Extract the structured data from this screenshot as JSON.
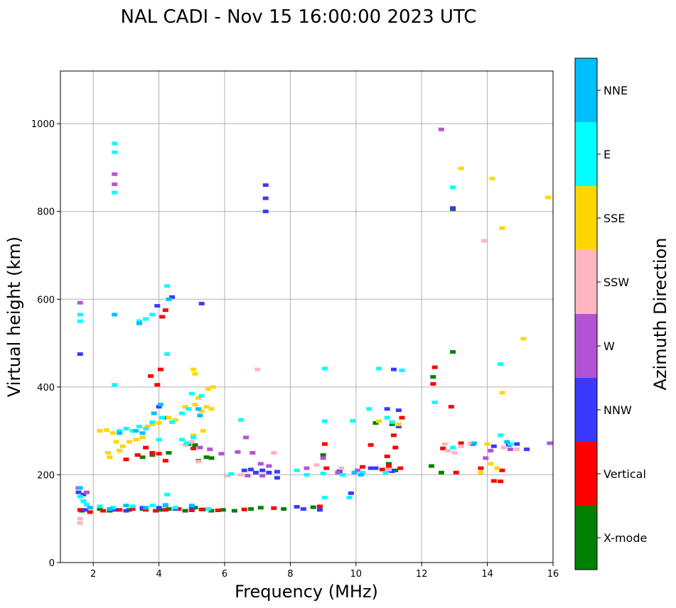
{
  "chart_data": {
    "type": "scatter",
    "title": "NAL CADI - Nov 15 16:00:00 2023 UTC",
    "xlabel": "Frequency (MHz)",
    "ylabel": "Virtual height (km)",
    "xlim": [
      1,
      16
    ],
    "ylim": [
      0,
      1120
    ],
    "xticks": [
      2,
      4,
      6,
      8,
      10,
      12,
      14,
      16
    ],
    "yticks": [
      0,
      200,
      400,
      600,
      800,
      1000
    ],
    "grid": true,
    "colorbar": {
      "label": "Azimuth Direction",
      "categories": [
        "X-mode",
        "Vertical",
        "NNW",
        "W",
        "SSW",
        "SSE",
        "E",
        "NNE"
      ],
      "colors": [
        "#008000",
        "#ff0000",
        "#3a3aff",
        "#b354d6",
        "#ffb6c1",
        "#ffd700",
        "#00ffff",
        "#00bfff"
      ]
    },
    "series": [
      {
        "name": "X-mode",
        "points": [
          [
            1.65,
            118
          ],
          [
            2.2,
            122
          ],
          [
            2.5,
            118
          ],
          [
            3.1,
            120
          ],
          [
            3.5,
            122
          ],
          [
            4.05,
            120
          ],
          [
            4.3,
            122
          ],
          [
            4.8,
            118
          ],
          [
            5.1,
            125
          ],
          [
            5.35,
            121
          ],
          [
            5.6,
            118
          ],
          [
            5.95,
            120
          ],
          [
            6.3,
            118
          ],
          [
            6.8,
            122
          ],
          [
            7.1,
            125
          ],
          [
            7.8,
            122
          ],
          [
            8.7,
            126
          ],
          [
            3.5,
            240
          ],
          [
            3.8,
            245
          ],
          [
            4.3,
            250
          ],
          [
            5.2,
            232
          ],
          [
            5.45,
            240
          ],
          [
            5.6,
            238
          ],
          [
            11.0,
            225
          ],
          [
            11.2,
            210
          ],
          [
            12.3,
            220
          ],
          [
            12.6,
            205
          ],
          [
            12.35,
            423
          ],
          [
            12.95,
            480
          ],
          [
            12.95,
            805
          ],
          [
            4.9,
            270
          ],
          [
            5.1,
            268
          ],
          [
            9.0,
            245
          ],
          [
            10.6,
            318
          ],
          [
            11.1,
            315
          ]
        ]
      },
      {
        "name": "Vertical",
        "points": [
          [
            1.6,
            120
          ],
          [
            1.9,
            115
          ],
          [
            2.3,
            118
          ],
          [
            2.8,
            120
          ],
          [
            3.2,
            122
          ],
          [
            3.6,
            120
          ],
          [
            3.9,
            118
          ],
          [
            4.2,
            120
          ],
          [
            4.6,
            122
          ],
          [
            5.0,
            119
          ],
          [
            5.3,
            121
          ],
          [
            5.8,
            119
          ],
          [
            6.6,
            121
          ],
          [
            7.5,
            124
          ],
          [
            8.9,
            128
          ],
          [
            3.0,
            235
          ],
          [
            3.35,
            245
          ],
          [
            3.6,
            262
          ],
          [
            3.8,
            250
          ],
          [
            4.0,
            248
          ],
          [
            4.2,
            232
          ],
          [
            5.05,
            260
          ],
          [
            3.75,
            425
          ],
          [
            3.95,
            405
          ],
          [
            4.1,
            560
          ],
          [
            4.2,
            575
          ],
          [
            4.05,
            440
          ],
          [
            9.1,
            215
          ],
          [
            9.05,
            270
          ],
          [
            10.2,
            218
          ],
          [
            10.45,
            268
          ],
          [
            10.8,
            212
          ],
          [
            11.0,
            220
          ],
          [
            11.2,
            262
          ],
          [
            11.4,
            330
          ],
          [
            11.15,
            290
          ],
          [
            11.35,
            215
          ],
          [
            12.35,
            407
          ],
          [
            12.4,
            445
          ],
          [
            12.65,
            260
          ],
          [
            12.9,
            355
          ],
          [
            13.05,
            205
          ],
          [
            13.2,
            272
          ],
          [
            14.2,
            186
          ],
          [
            14.4,
            185
          ],
          [
            14.45,
            210
          ],
          [
            13.8,
            215
          ],
          [
            10.95,
            242
          ]
        ]
      },
      {
        "name": "NNW",
        "points": [
          [
            1.55,
            160
          ],
          [
            1.7,
            155
          ],
          [
            1.75,
            120
          ],
          [
            2.65,
            120
          ],
          [
            3.0,
            118
          ],
          [
            3.5,
            125
          ],
          [
            4.0,
            125
          ],
          [
            4.5,
            122
          ],
          [
            5.0,
            125
          ],
          [
            6.6,
            210
          ],
          [
            6.8,
            212
          ],
          [
            6.95,
            205
          ],
          [
            7.15,
            210
          ],
          [
            7.35,
            205
          ],
          [
            7.6,
            193
          ],
          [
            7.6,
            207
          ],
          [
            8.2,
            127
          ],
          [
            8.4,
            122
          ],
          [
            8.9,
            120
          ],
          [
            9.5,
            208
          ],
          [
            9.85,
            158
          ],
          [
            10.45,
            215
          ],
          [
            10.6,
            215
          ],
          [
            11.05,
            210
          ],
          [
            11.3,
            310
          ],
          [
            11.15,
            440
          ],
          [
            10.95,
            350
          ],
          [
            11.3,
            347
          ],
          [
            11.1,
            208
          ],
          [
            13.55,
            270
          ],
          [
            14.2,
            265
          ],
          [
            14.65,
            268
          ],
          [
            14.9,
            270
          ],
          [
            15.2,
            258
          ],
          [
            4.4,
            605
          ],
          [
            4.2,
            330
          ],
          [
            4.0,
            355
          ],
          [
            7.25,
            860
          ],
          [
            7.25,
            830
          ],
          [
            7.25,
            800
          ],
          [
            1.6,
            475
          ],
          [
            5.3,
            590
          ],
          [
            12.95,
            808
          ],
          [
            3.95,
            585
          ]
        ]
      },
      {
        "name": "W",
        "points": [
          [
            5.25,
            262
          ],
          [
            5.55,
            258
          ],
          [
            5.9,
            248
          ],
          [
            6.4,
            252
          ],
          [
            6.65,
            285
          ],
          [
            6.85,
            250
          ],
          [
            7.1,
            225
          ],
          [
            7.35,
            220
          ],
          [
            8.5,
            215
          ],
          [
            9.0,
            238
          ],
          [
            9.45,
            205
          ],
          [
            10.05,
            210
          ],
          [
            12.6,
            987
          ],
          [
            13.95,
            238
          ],
          [
            14.1,
            255
          ],
          [
            14.7,
            258
          ],
          [
            15.9,
            272
          ],
          [
            6.7,
            198
          ],
          [
            7.15,
            198
          ],
          [
            1.6,
            592
          ],
          [
            1.8,
            160
          ],
          [
            1.55,
            170
          ],
          [
            2.65,
            885
          ],
          [
            2.65,
            862
          ]
        ]
      },
      {
        "name": "SSW",
        "points": [
          [
            5.2,
            230
          ],
          [
            6.1,
            198
          ],
          [
            6.5,
            200
          ],
          [
            7.5,
            250
          ],
          [
            7.0,
            440
          ],
          [
            8.8,
            222
          ],
          [
            9.55,
            215
          ],
          [
            11.0,
            212
          ],
          [
            12.7,
            270
          ],
          [
            12.8,
            255
          ],
          [
            13.0,
            250
          ],
          [
            13.2,
            265
          ],
          [
            13.5,
            272
          ],
          [
            13.9,
            733
          ],
          [
            14.5,
            262
          ],
          [
            14.9,
            258
          ],
          [
            1.6,
            100
          ],
          [
            1.6,
            90
          ],
          [
            4.8,
            268
          ],
          [
            5.0,
            275
          ]
        ]
      },
      {
        "name": "SSE",
        "points": [
          [
            2.2,
            300
          ],
          [
            2.4,
            302
          ],
          [
            2.6,
            295
          ],
          [
            2.7,
            275
          ],
          [
            2.9,
            265
          ],
          [
            3.1,
            275
          ],
          [
            3.3,
            280
          ],
          [
            3.5,
            285
          ],
          [
            3.65,
            310
          ],
          [
            3.8,
            315
          ],
          [
            4.0,
            318
          ],
          [
            4.3,
            330
          ],
          [
            4.5,
            325
          ],
          [
            4.8,
            355
          ],
          [
            5.1,
            360
          ],
          [
            5.2,
            375
          ],
          [
            5.3,
            345
          ],
          [
            5.45,
            355
          ],
          [
            5.6,
            350
          ],
          [
            5.1,
            430
          ],
          [
            5.05,
            440
          ],
          [
            5.5,
            395
          ],
          [
            5.65,
            400
          ],
          [
            2.45,
            250
          ],
          [
            2.5,
            240
          ],
          [
            2.8,
            255
          ],
          [
            13.2,
            898
          ],
          [
            14.15,
            875
          ],
          [
            14.45,
            762
          ],
          [
            14.45,
            387
          ],
          [
            15.1,
            510
          ],
          [
            15.85,
            832
          ],
          [
            14.1,
            225
          ],
          [
            14.3,
            215
          ],
          [
            13.8,
            205
          ],
          [
            14.0,
            270
          ],
          [
            11.3,
            315
          ],
          [
            10.7,
            322
          ],
          [
            5.05,
            290
          ],
          [
            5.35,
            300
          ]
        ]
      },
      {
        "name": "E",
        "points": [
          [
            1.6,
            150
          ],
          [
            1.7,
            140
          ],
          [
            1.8,
            132
          ],
          [
            2.2,
            128
          ],
          [
            2.6,
            125
          ],
          [
            3.2,
            128
          ],
          [
            3.8,
            130
          ],
          [
            4.2,
            132
          ],
          [
            4.5,
            125
          ],
          [
            5.5,
            122
          ],
          [
            2.8,
            300
          ],
          [
            3.0,
            305
          ],
          [
            3.2,
            300
          ],
          [
            3.4,
            310
          ],
          [
            3.6,
            305
          ],
          [
            3.8,
            320
          ],
          [
            4.1,
            330
          ],
          [
            4.4,
            320
          ],
          [
            4.7,
            340
          ],
          [
            4.9,
            350
          ],
          [
            5.0,
            385
          ],
          [
            5.3,
            380
          ],
          [
            3.4,
            550
          ],
          [
            3.6,
            555
          ],
          [
            3.8,
            565
          ],
          [
            4.25,
            475
          ],
          [
            4.25,
            630
          ],
          [
            2.65,
            405
          ],
          [
            4.7,
            280
          ],
          [
            4.85,
            272
          ],
          [
            5.05,
            285
          ],
          [
            9.05,
            442
          ],
          [
            9.05,
            322
          ],
          [
            9.05,
            148
          ],
          [
            9.8,
            148
          ],
          [
            9.9,
            323
          ],
          [
            8.5,
            200
          ],
          [
            9.0,
            203
          ],
          [
            8.2,
            210
          ],
          [
            9.6,
            200
          ],
          [
            10.4,
            350
          ],
          [
            10.7,
            442
          ],
          [
            10.95,
            330
          ],
          [
            11.1,
            320
          ],
          [
            11.4,
            438
          ],
          [
            12.4,
            365
          ],
          [
            12.95,
            262
          ],
          [
            12.95,
            855
          ],
          [
            14.4,
            290
          ],
          [
            14.4,
            452
          ],
          [
            14.7,
            270
          ],
          [
            10.2,
            205
          ],
          [
            10.9,
            205
          ],
          [
            6.5,
            325
          ],
          [
            6.2,
            202
          ],
          [
            2.65,
            843
          ],
          [
            2.65,
            935
          ],
          [
            2.65,
            955
          ],
          [
            1.6,
            565
          ],
          [
            1.6,
            550
          ],
          [
            4.25,
            155
          ],
          [
            4.0,
            280
          ]
        ]
      },
      {
        "name": "NNE",
        "points": [
          [
            1.6,
            170
          ],
          [
            1.9,
            125
          ],
          [
            2.5,
            122
          ],
          [
            3.0,
            130
          ],
          [
            3.6,
            125
          ],
          [
            4.2,
            130
          ],
          [
            5.0,
            130
          ],
          [
            2.8,
            295
          ],
          [
            3.3,
            300
          ],
          [
            3.5,
            295
          ],
          [
            4.05,
            360
          ],
          [
            3.85,
            340
          ],
          [
            4.3,
            600
          ],
          [
            2.65,
            565
          ],
          [
            9.95,
            205
          ],
          [
            10.15,
            200
          ],
          [
            14.6,
            275
          ],
          [
            13.6,
            272
          ],
          [
            5.2,
            350
          ],
          [
            5.25,
            335
          ],
          [
            3.4,
            545
          ]
        ]
      }
    ]
  }
}
